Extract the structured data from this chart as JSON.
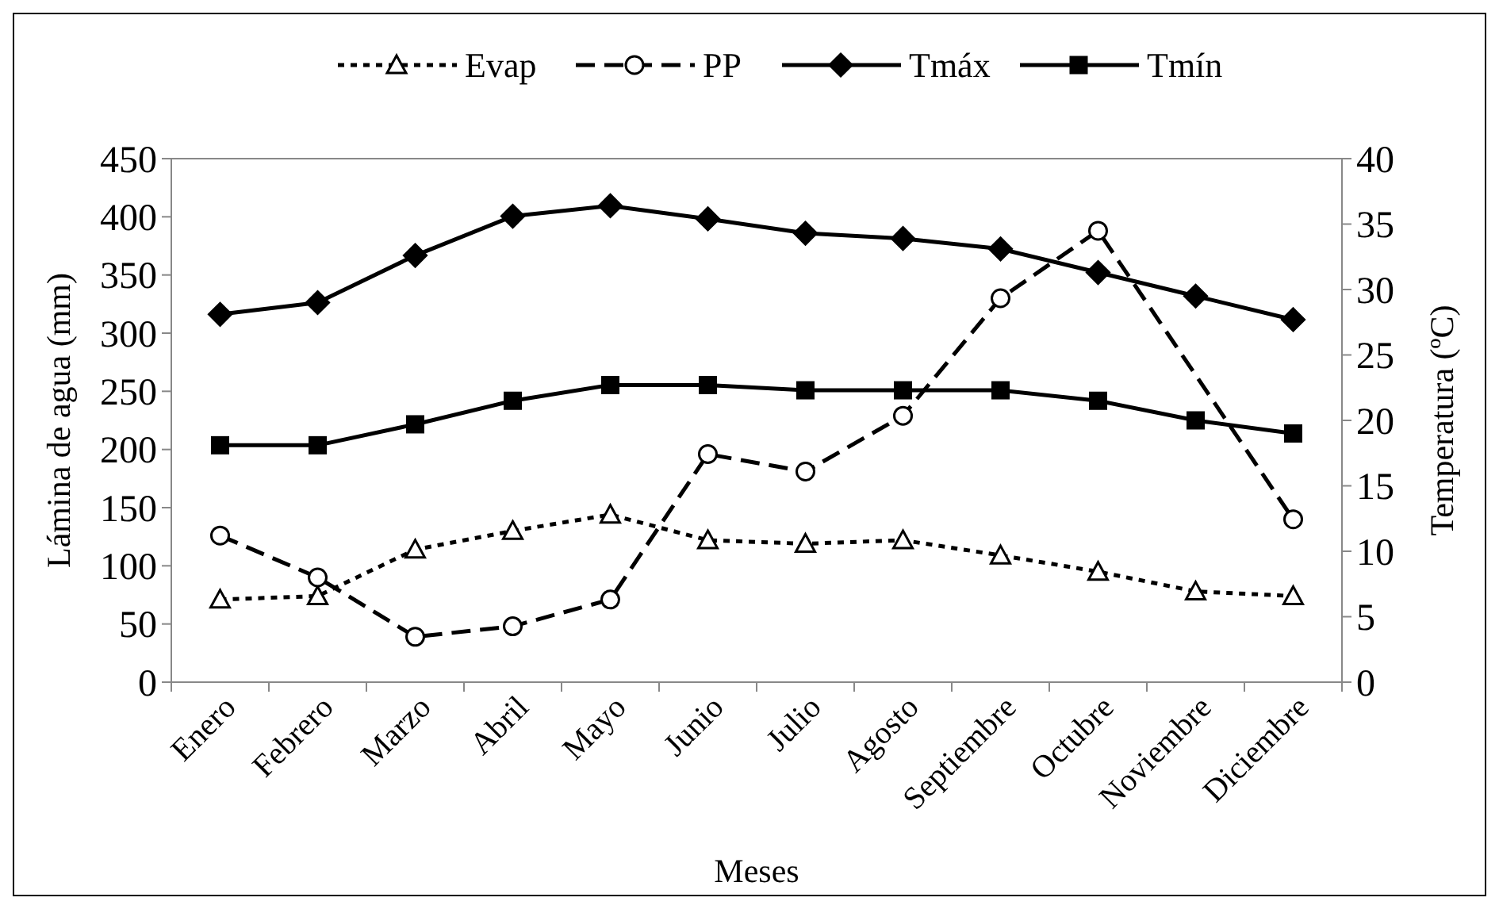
{
  "chart_data": {
    "type": "line",
    "xlabel": "Meses",
    "ylabel": "Lámina de agua (mm)",
    "y2label": "Temperatura (ºC)",
    "categories": [
      "Enero",
      "Febrero",
      "Marzo",
      "Abril",
      "Mayo",
      "Junio",
      "Julio",
      "Agosto",
      "Septiembre",
      "Octubre",
      "Noviembre",
      "Diciembre"
    ],
    "ylim": [
      0,
      450
    ],
    "yticks": [
      0,
      50,
      100,
      150,
      200,
      250,
      300,
      350,
      400,
      450
    ],
    "y2lim": [
      0,
      40
    ],
    "y2ticks": [
      0,
      5,
      10,
      15,
      20,
      25,
      30,
      35,
      40
    ],
    "legend": "top",
    "grid": false,
    "series": [
      {
        "name": "Evap",
        "color": "#000000",
        "marker": "triangle",
        "line_style": "dotted",
        "values": [
          71,
          74,
          114,
          130,
          144,
          122,
          119,
          122,
          109,
          95,
          78,
          74
        ]
      },
      {
        "name": "PP",
        "color": "#000000",
        "marker": "circle",
        "line_style": "dashed",
        "values": [
          126,
          90,
          39,
          48,
          71,
          196,
          181,
          229,
          330,
          388,
          null,
          140
        ]
      },
      {
        "name": "Tmáx",
        "color": "#000000",
        "marker": "diamond",
        "line_style": "solid",
        "axis": "y2",
        "values": [
          28.1,
          29.0,
          32.6,
          35.6,
          36.4,
          35.4,
          34.3,
          33.9,
          33.1,
          31.3,
          29.5,
          27.7
        ]
      },
      {
        "name": "Tmín",
        "color": "#000000",
        "marker": "square",
        "line_style": "solid",
        "axis": "y2",
        "values": [
          18.1,
          18.1,
          19.7,
          21.5,
          22.7,
          22.7,
          22.3,
          22.3,
          22.3,
          21.5,
          20.0,
          19.0
        ]
      }
    ]
  }
}
